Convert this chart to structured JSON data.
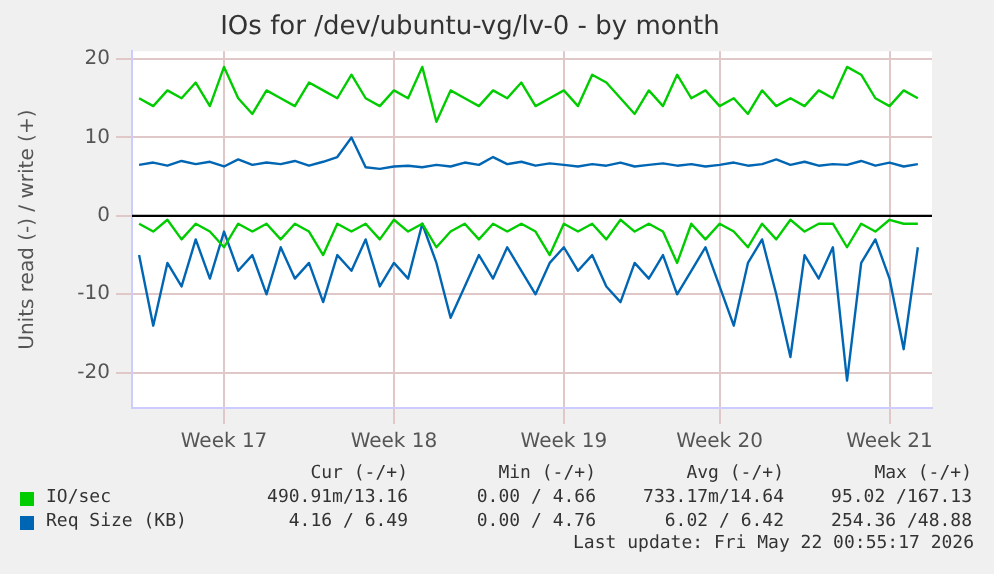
{
  "chart_data": {
    "type": "line",
    "title": "IOs for /dev/ubuntu-vg/lv-0 - by month",
    "ylabel": "Units read (-) / write (+)",
    "categories": [
      null,
      null,
      null,
      null,
      null,
      null,
      "Week 17",
      null,
      null,
      null,
      null,
      null,
      null,
      null,
      null,
      null,
      null,
      null,
      "Week 18",
      null,
      null,
      null,
      null,
      null,
      null,
      null,
      null,
      null,
      null,
      null,
      "Week 19",
      null,
      null,
      null,
      null,
      null,
      null,
      null,
      null,
      null,
      null,
      "Week 20",
      null,
      null,
      null,
      null,
      null,
      null,
      null,
      null,
      null,
      null,
      null,
      "Week 21",
      null,
      null
    ],
    "ylim": [
      -24.5,
      21
    ],
    "yticks": [
      -20,
      -10,
      0,
      10,
      20
    ],
    "grid": true,
    "legend": "bottom",
    "marker": "none",
    "line_style": "solid",
    "ref_lines": [
      {
        "axis": "y",
        "value": 0,
        "color": "#000000"
      }
    ],
    "series": [
      {
        "name": "IO/sec",
        "color": "#00cc00",
        "values": [
          15,
          14,
          16,
          15,
          17,
          14,
          19,
          15,
          13,
          16,
          15,
          14,
          17,
          16,
          15,
          18,
          15,
          14,
          16,
          15,
          19,
          12,
          16,
          15,
          14,
          16,
          15,
          17,
          14,
          15,
          16,
          14,
          18,
          17,
          15,
          13,
          16,
          14,
          18,
          15,
          16,
          14,
          15,
          13,
          16,
          14,
          15,
          14,
          16,
          15,
          19,
          18,
          15,
          14,
          16,
          15
        ]
      },
      {
        "color": "#00cc00",
        "values": [
          -1,
          -2,
          -0.5,
          -3,
          -1,
          -2,
          -4,
          -1,
          -2,
          -1,
          -3,
          -1,
          -2,
          -5,
          -1,
          -2,
          -1,
          -3,
          -0.5,
          -2,
          -1,
          -4,
          -2,
          -1,
          -3,
          -1,
          -2,
          -1,
          -2,
          -5,
          -1,
          -2,
          -1,
          -3,
          -0.5,
          -2,
          -1,
          -2,
          -6,
          -1,
          -3,
          -1,
          -2,
          -4,
          -1,
          -3,
          -0.5,
          -2,
          -1,
          -1,
          -4,
          -1,
          -2,
          -0.5,
          -1,
          -1
        ]
      },
      {
        "name": "Req Size (KB)",
        "color": "#0066b3",
        "values": [
          6.5,
          6.8,
          6.4,
          7,
          6.6,
          6.9,
          6.3,
          7.2,
          6.5,
          6.8,
          6.6,
          7,
          6.4,
          6.9,
          7.5,
          10,
          6.2,
          6,
          6.3,
          6.4,
          6.2,
          6.5,
          6.3,
          6.8,
          6.5,
          7.5,
          6.6,
          6.9,
          6.4,
          6.7,
          6.5,
          6.3,
          6.6,
          6.4,
          6.8,
          6.3,
          6.5,
          6.7,
          6.4,
          6.6,
          6.3,
          6.5,
          6.8,
          6.4,
          6.6,
          7.2,
          6.5,
          6.9,
          6.4,
          6.6,
          6.5,
          7,
          6.4,
          6.8,
          6.3,
          6.6
        ]
      },
      {
        "color": "#0066b3",
        "values": [
          -5,
          -14,
          -6,
          -9,
          -3,
          -8,
          -2,
          -7,
          -5,
          -10,
          -4,
          -8,
          -6,
          -11,
          -5,
          -7,
          -3,
          -9,
          -6,
          -8,
          -1,
          -6,
          -13,
          -9,
          -5,
          -8,
          -4,
          -7,
          -10,
          -6,
          -4,
          -7,
          -5,
          -9,
          -11,
          -6,
          -8,
          -5,
          -10,
          -7,
          -4,
          -9,
          -14,
          -6,
          -3,
          -10,
          -18,
          -5,
          -8,
          -4,
          -21,
          -6,
          -3,
          -8,
          -17,
          -4
        ]
      }
    ],
    "annotations": [
      "Cur (-/+)",
      "Min (-/+)",
      "Avg (-/+)",
      "Max (-/+)",
      "490.91m/13.16",
      "0.00 / 4.66",
      "733.17m/14.64",
      "95.02 /167.13",
      "4.16 / 6.49",
      "0.00 / 4.76",
      "6.02 / 6.42",
      "254.36 /48.88",
      "Last update: Fri May 22 00:55:17 2026"
    ]
  }
}
